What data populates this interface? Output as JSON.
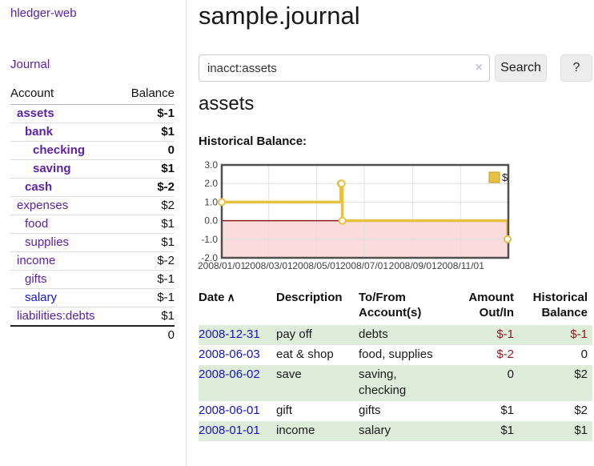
{
  "sidebar": {
    "app_title": "hledger-web",
    "nav": {
      "journal_label": "Journal"
    },
    "accounts_table": {
      "col_account": "Account",
      "col_balance": "Balance",
      "rows": [
        {
          "account": "assets",
          "balance": "$-1",
          "level": 1,
          "bold": true,
          "link_blue": false
        },
        {
          "account": "bank",
          "balance": "$1",
          "level": 2,
          "bold": true,
          "link_blue": false
        },
        {
          "account": "checking",
          "balance": "0",
          "level": 3,
          "bold": true,
          "link_blue": false
        },
        {
          "account": "saving",
          "balance": "$1",
          "level": 3,
          "bold": true,
          "link_blue": false
        },
        {
          "account": "cash",
          "balance": "$-2",
          "level": 2,
          "bold": true,
          "link_blue": false
        },
        {
          "account": "expenses",
          "balance": "$2",
          "level": 1,
          "bold": false,
          "link_blue": false
        },
        {
          "account": "food",
          "balance": "$1",
          "level": 2,
          "bold": false,
          "link_blue": false
        },
        {
          "account": "supplies",
          "balance": "$1",
          "level": 2,
          "bold": false,
          "link_blue": false
        },
        {
          "account": "income",
          "balance": "$-2",
          "level": 1,
          "bold": false,
          "link_blue": false
        },
        {
          "account": "gifts",
          "balance": "$-1",
          "level": 2,
          "bold": false,
          "link_blue": false
        },
        {
          "account": "salary",
          "balance": "$-1",
          "level": 2,
          "bold": false,
          "link_blue": true
        },
        {
          "account": "liabilities:debts",
          "balance": "$1",
          "level": 1,
          "bold": false,
          "link_blue": false
        }
      ],
      "total": "0"
    }
  },
  "header": {
    "title": "sample.journal"
  },
  "search": {
    "value": "inacct:assets",
    "clear_icon": "×",
    "button_label": "Search",
    "help_label": "?"
  },
  "account_page": {
    "heading": "assets",
    "chart_label": "Historical Balance:"
  },
  "chart_data": {
    "type": "line",
    "step": true,
    "title": "Historical Balance",
    "series": [
      {
        "name": "$",
        "points": [
          {
            "date": "2008-01-01",
            "day": 0,
            "value": 1
          },
          {
            "date": "2008-06-01",
            "day": 152,
            "value": 2
          },
          {
            "date": "2008-06-02",
            "day": 153,
            "value": 2
          },
          {
            "date": "2008-06-03",
            "day": 154,
            "value": 0
          },
          {
            "date": "2008-12-31",
            "day": 365,
            "value": -1
          }
        ]
      }
    ],
    "x_axis": {
      "min_day": 0,
      "max_day": 366,
      "ticks": [
        {
          "day": 0,
          "label": "2008/01/01"
        },
        {
          "day": 60,
          "label": "2008/03/01"
        },
        {
          "day": 121,
          "label": "2008/05/01"
        },
        {
          "day": 182,
          "label": "2008/07/01"
        },
        {
          "day": 244,
          "label": "2008/09/01"
        },
        {
          "day": 305,
          "label": "2008/11/01"
        }
      ]
    },
    "y_axis": {
      "min": -2,
      "max": 3,
      "ticks": [
        "3.0",
        "2.0",
        "1.0",
        "0.0",
        "-1.0",
        "-2.0"
      ]
    },
    "legend": {
      "label": "$",
      "position": "top-right"
    },
    "grid": true,
    "colors": {
      "line": "#e8c143",
      "legend_border": "#c49b23",
      "marker_fill": "#ffffff",
      "negative_region": "#fbdcdc",
      "zero_line": "#8b1a1a",
      "grid": "#e0e0e0",
      "border": "#4f4f4f"
    }
  },
  "register_table": {
    "sort_icon": "∧",
    "columns": [
      {
        "line1": "Date",
        "line2": ""
      },
      {
        "line1": "Description",
        "line2": ""
      },
      {
        "line1": "To/From",
        "line2": "Account(s)"
      },
      {
        "line1": "Amount",
        "line2": "Out/In"
      },
      {
        "line1": "Historical",
        "line2": "Balance"
      }
    ],
    "rows": [
      {
        "date": "2008-12-31",
        "description": "pay off",
        "accounts": "debts",
        "amount": "$-1",
        "balance": "$-1"
      },
      {
        "date": "2008-06-03",
        "description": "eat & shop",
        "accounts": "food, supplies",
        "amount": "$-2",
        "balance": "0"
      },
      {
        "date": "2008-06-02",
        "description": "save",
        "accounts": "saving, checking",
        "amount": "0",
        "balance": "$2"
      },
      {
        "date": "2008-06-01",
        "description": "gift",
        "accounts": "gifts",
        "amount": "$1",
        "balance": "$2"
      },
      {
        "date": "2008-01-01",
        "description": "income",
        "accounts": "salary",
        "amount": "$1",
        "balance": "$1"
      }
    ]
  }
}
